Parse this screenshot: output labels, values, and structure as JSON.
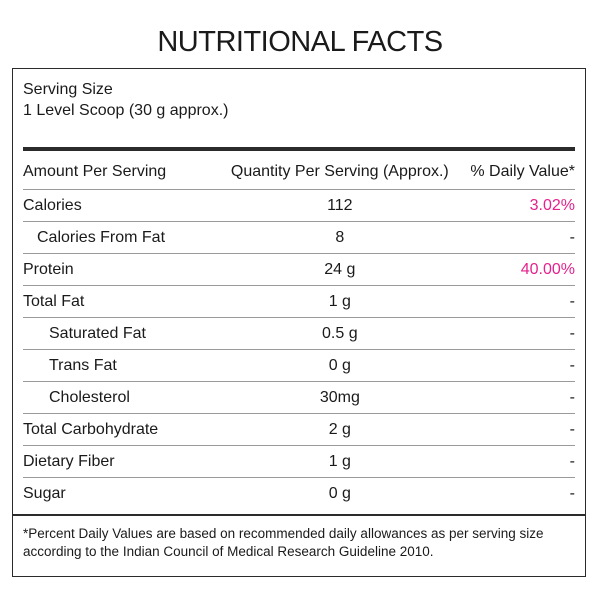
{
  "title": "NUTRITIONAL FACTS",
  "serving": {
    "label": "Serving Size",
    "value": "1 Level Scoop (30 g approx.)"
  },
  "headers": {
    "name": "Amount Per Serving",
    "qty": "Quantity Per Serving (Approx.)",
    "dv": "% Daily Value*"
  },
  "rows": [
    {
      "name": "Calories",
      "qty": "112",
      "dv": "3.02%"
    },
    {
      "name": "Calories From Fat",
      "qty": "8",
      "dv": "-"
    },
    {
      "name": "Protein",
      "qty": "24 g",
      "dv": "40.00%"
    },
    {
      "name": "Total Fat",
      "qty": "1 g",
      "dv": "-"
    },
    {
      "name": "Saturated Fat",
      "qty": "0.5 g",
      "dv": "-"
    },
    {
      "name": "Trans Fat",
      "qty": "0 g",
      "dv": "-"
    },
    {
      "name": "Cholesterol",
      "qty": "30mg",
      "dv": "-"
    },
    {
      "name": "Total Carbohydrate",
      "qty": "2 g",
      "dv": "-"
    },
    {
      "name": "Dietary Fiber",
      "qty": "1 g",
      "dv": "-"
    },
    {
      "name": "Sugar",
      "qty": "0 g",
      "dv": "-"
    }
  ],
  "footnote": "*Percent Daily Values are based on recommended daily allowances as per serving size according to the Indian Council of Medical Research Guideline 2010.",
  "colors": {
    "highlight": "#e6218c",
    "border": "#2b2b2b"
  }
}
